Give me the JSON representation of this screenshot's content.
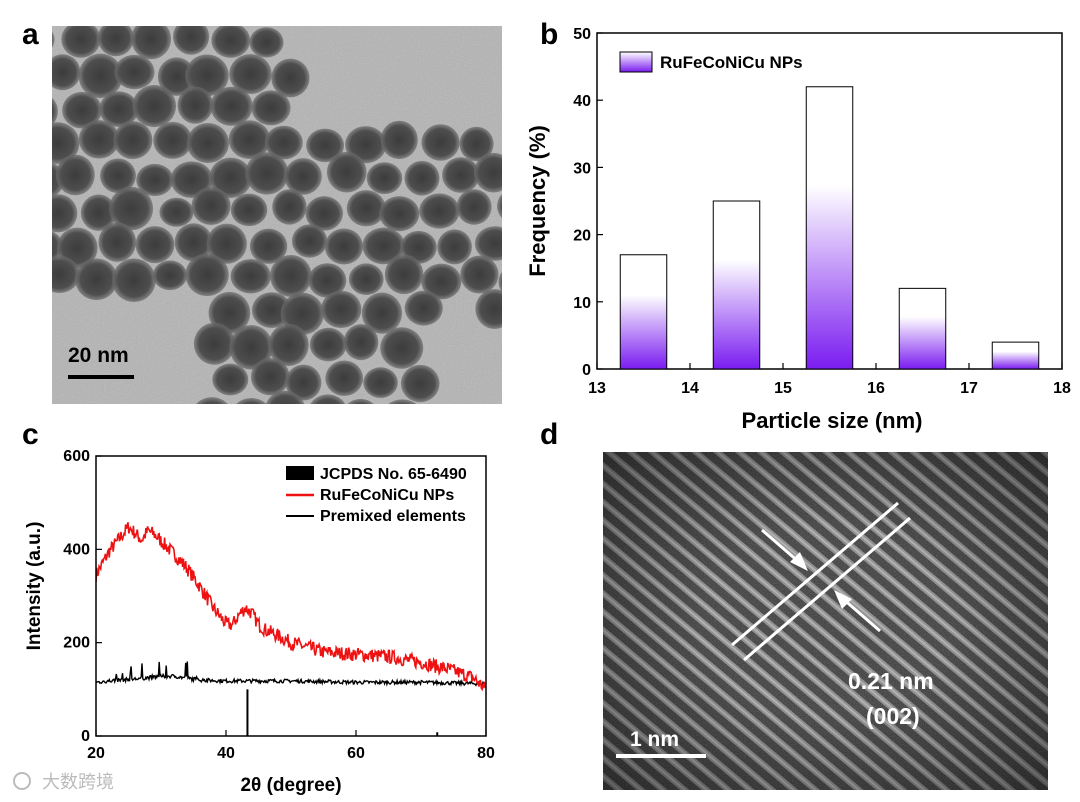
{
  "panels": {
    "a": {
      "label": "a",
      "scale_bar_label": "20 nm"
    },
    "d": {
      "label": "d",
      "scale_bar_label": "1 nm",
      "spacing_label": "0.21 nm",
      "plane_label": "(002)"
    }
  },
  "watermark": "大数跨境",
  "chart_data": [
    {
      "panel": "b",
      "type": "bar",
      "xlabel": "Particle size (nm)",
      "ylabel": "Frequency (%)",
      "xlim": [
        13,
        18
      ],
      "ylim": [
        0,
        50
      ],
      "xticks": [
        13,
        14,
        15,
        16,
        17,
        18
      ],
      "yticks": [
        0,
        10,
        20,
        30,
        40,
        50
      ],
      "bar_width": 0.5,
      "x": [
        13.5,
        14.5,
        15.5,
        16.5,
        17.5
      ],
      "values": [
        17,
        25,
        42,
        12,
        4
      ],
      "series_name": "RuFeCoNiCu NPs",
      "bar_color": "#7a1cf0",
      "legend_position": "top-left"
    },
    {
      "panel": "c",
      "type": "line",
      "xlabel": "2θ (degree)",
      "ylabel": "Intensity (a.u.)",
      "xlim": [
        20,
        80
      ],
      "ylim": [
        0,
        600
      ],
      "xticks": [
        20,
        40,
        60,
        80
      ],
      "yticks": [
        0,
        200,
        400,
        600
      ],
      "legend_position": "top-right",
      "series": [
        {
          "name": "JCPDS No. 65-6490",
          "kind": "reference-sticks",
          "color": "#000000",
          "x": [
            43.3,
            72.5
          ],
          "values": [
            100,
            8
          ]
        },
        {
          "name": "RuFeCoNiCu NPs",
          "kind": "line",
          "color": "#ee1111",
          "x": [
            20,
            22,
            24,
            25,
            26,
            27,
            28,
            29,
            30,
            32,
            34,
            36,
            38,
            40,
            41,
            42,
            43,
            44,
            45,
            46,
            48,
            50,
            55,
            60,
            65,
            70,
            75,
            78,
            80
          ],
          "values": [
            345,
            395,
            430,
            448,
            435,
            420,
            440,
            432,
            418,
            390,
            360,
            320,
            275,
            240,
            238,
            260,
            275,
            262,
            240,
            228,
            215,
            200,
            180,
            175,
            170,
            158,
            140,
            125,
            100
          ]
        },
        {
          "name": "Premixed elements",
          "kind": "line",
          "color": "#000000",
          "x": [
            20,
            22,
            24,
            26,
            28,
            30,
            32,
            34,
            36,
            40,
            50,
            60,
            70,
            80
          ],
          "values": [
            115,
            118,
            120,
            122,
            125,
            128,
            128,
            124,
            120,
            118,
            118,
            115,
            115,
            112
          ]
        }
      ]
    }
  ]
}
